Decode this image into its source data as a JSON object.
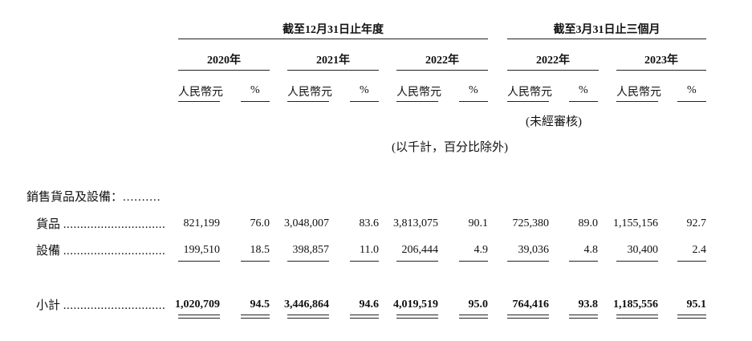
{
  "header": {
    "group1": "截至12月31日止年度",
    "group2": "截至3月31日止三個月",
    "years": [
      "2020年",
      "2021年",
      "2022年",
      "2022年",
      "2023年"
    ],
    "currency": "人民幣元",
    "pct": "%",
    "unaudited": "(未經審核)",
    "unit_note": "(以千計，百分比除外)"
  },
  "rows": {
    "section": "銷售貨品及設備：",
    "section_dots": "..........",
    "goods": {
      "label": "貨品",
      "dots": "..............................",
      "values": [
        "821,199",
        "76.0",
        "3,048,007",
        "83.6",
        "3,813,075",
        "90.1",
        "725,380",
        "89.0",
        "1,155,156",
        "92.7"
      ]
    },
    "equipment": {
      "label": "設備",
      "dots": "..............................",
      "values": [
        "199,510",
        "18.5",
        "398,857",
        "11.0",
        "206,444",
        "4.9",
        "39,036",
        "4.8",
        "30,400",
        "2.4"
      ]
    },
    "subtotal": {
      "label": "小計",
      "dots": "..............................",
      "values": [
        "1,020,709",
        "94.5",
        "3,446,864",
        "94.6",
        "4,019,519",
        "95.0",
        "764,416",
        "93.8",
        "1,185,556",
        "95.1"
      ]
    }
  }
}
